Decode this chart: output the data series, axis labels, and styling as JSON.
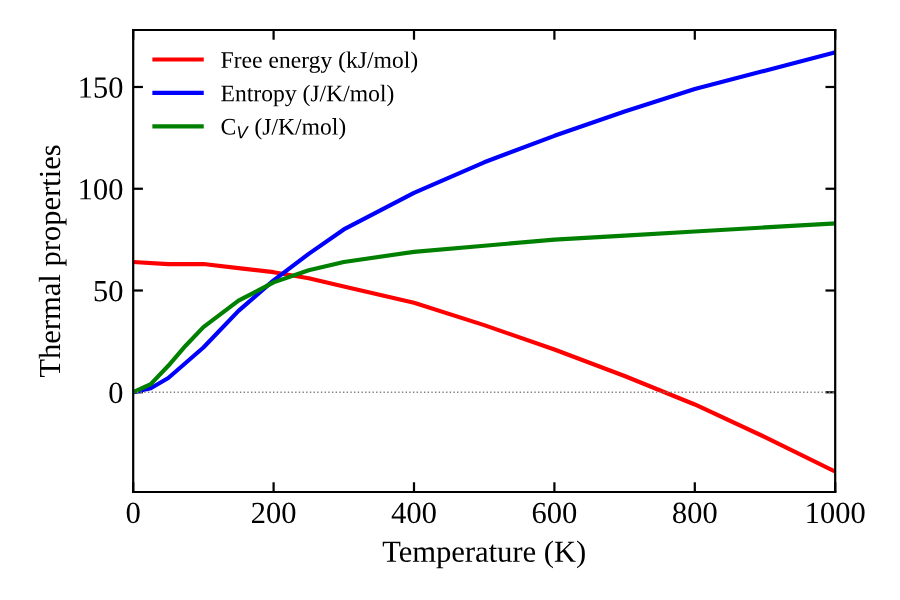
{
  "chart_data": {
    "type": "line",
    "xlabel": "Temperature (K)",
    "ylabel": "Thermal properties",
    "xlim": [
      0,
      1000
    ],
    "ylim": [
      -49,
      178
    ],
    "xticks": [
      0,
      200,
      400,
      600,
      800,
      1000
    ],
    "yticks": [
      0,
      50,
      100,
      150
    ],
    "grid": false,
    "legend": "top left",
    "ref_lines": [
      {
        "axis": "y",
        "value": 0,
        "color": "#808080",
        "line_style": "dotted"
      }
    ],
    "series": [
      {
        "name": "Free energy (kJ/mol)",
        "color": "#ff0000",
        "x": [
          0,
          50,
          100,
          150,
          200,
          250,
          300,
          400,
          500,
          600,
          700,
          750,
          800,
          900,
          1000
        ],
        "values": [
          64,
          63,
          63,
          61,
          59,
          56,
          52,
          44,
          33,
          21,
          8,
          1,
          -6,
          -22,
          -39
        ]
      },
      {
        "name": "Entropy (J/K/mol)",
        "color": "#0000ff",
        "x": [
          0,
          25,
          50,
          100,
          150,
          200,
          250,
          300,
          400,
          500,
          600,
          700,
          800,
          900,
          1000
        ],
        "values": [
          0,
          2,
          7,
          22,
          40,
          55,
          68,
          80,
          98,
          113,
          126,
          138,
          149,
          158,
          167
        ]
      },
      {
        "name": "C$_{V}$ (J/K/mol)",
        "color": "#008000",
        "x": [
          0,
          25,
          50,
          75,
          100,
          150,
          200,
          250,
          300,
          400,
          500,
          600,
          700,
          800,
          900,
          1000
        ],
        "values": [
          0,
          4,
          13,
          23,
          32,
          45,
          54,
          60,
          64,
          69,
          72,
          75,
          77,
          79,
          81,
          83
        ]
      }
    ]
  }
}
